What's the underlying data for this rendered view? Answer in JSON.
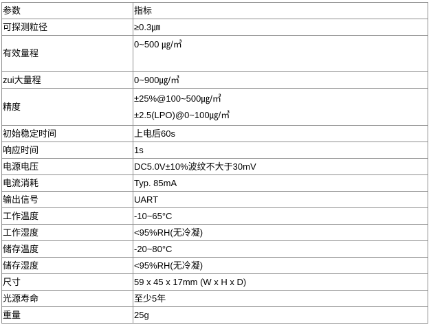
{
  "table": {
    "headers": [
      "参数",
      "指标"
    ],
    "rows": [
      {
        "param": "可探测粒径",
        "values": [
          "≥0.3㎛"
        ]
      },
      {
        "param": "有效量程",
        "values": [
          "0~500 ㎍/㎥"
        ]
      },
      {
        "param": "zui大量程",
        "values": [
          "0~900㎍/㎥"
        ]
      },
      {
        "param": "精度",
        "values": [
          "±25%@100~500㎍/㎥",
          "±2.5(LPO)@0~100㎍/㎥"
        ]
      },
      {
        "param": "初始稳定时间",
        "values": [
          "上电后60s"
        ]
      },
      {
        "param": "响应时间",
        "values": [
          "1s"
        ]
      },
      {
        "param": "电源电压",
        "values": [
          "DC5.0V±10%波纹不大于30mV"
        ]
      },
      {
        "param": "电流消耗",
        "values": [
          "Typ. 85mA"
        ]
      },
      {
        "param": "输出信号",
        "values": [
          "UART"
        ]
      },
      {
        "param": "工作温度",
        "values": [
          "-10~65°C"
        ]
      },
      {
        "param": "工作湿度",
        "values": [
          "<95%RH(无冷凝)"
        ]
      },
      {
        "param": "储存温度",
        "values": [
          "-20~80°C"
        ]
      },
      {
        "param": "储存湿度",
        "values": [
          "<95%RH(无冷凝)"
        ]
      },
      {
        "param": "尺寸",
        "values": [
          "59 x 45 x 17mm (W x H x D)"
        ]
      },
      {
        "param": "光源寿命",
        "values": [
          "至少5年"
        ]
      },
      {
        "param": "重量",
        "values": [
          "25g"
        ]
      }
    ]
  }
}
